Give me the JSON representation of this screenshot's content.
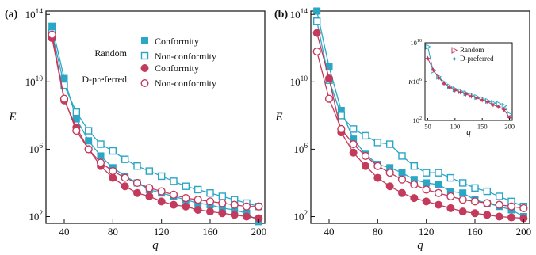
{
  "colors": {
    "random": "#2aa6c6",
    "dpref": "#c43a5c",
    "axis": "#111111"
  },
  "chart_data": [
    {
      "type": "line",
      "panel_label": "(a)",
      "xlabel": "q",
      "ylabel": "E",
      "xlim": [
        25,
        205
      ],
      "ylim_log10": [
        1.6,
        14.2
      ],
      "log_y": true,
      "xticks": [
        40,
        80,
        120,
        160,
        200
      ],
      "xtick_labels": [
        "40",
        "80",
        "120",
        "160",
        "200"
      ],
      "yticks": [
        2,
        6,
        10,
        14
      ],
      "ytick_labels": [
        {
          "base": "10",
          "exp": "2"
        },
        {
          "base": "10",
          "exp": "6"
        },
        {
          "base": "10",
          "exp": "10"
        },
        {
          "base": "10",
          "exp": "14"
        }
      ],
      "legend": {
        "group1": "Random",
        "group2": "D-preferred",
        "conformity": "Conformity",
        "nonconformity": "Non-conformity"
      },
      "x": [
        30,
        40,
        50,
        60,
        70,
        80,
        90,
        100,
        110,
        120,
        130,
        140,
        150,
        160,
        170,
        180,
        190,
        200
      ],
      "series": [
        {
          "group": "Random",
          "style": "Conformity",
          "log10_values": [
            13.3,
            10.2,
            7.8,
            6.5,
            5.6,
            4.9,
            4.4,
            4.0,
            3.6,
            3.4,
            3.2,
            3.0,
            2.8,
            2.7,
            2.5,
            2.4,
            2.2,
            1.7
          ]
        },
        {
          "group": "Random",
          "style": "Non-conformity",
          "log10_values": [
            12.9,
            9.8,
            8.2,
            7.1,
            6.3,
            5.9,
            5.4,
            5.0,
            4.7,
            4.4,
            4.1,
            3.8,
            3.6,
            3.4,
            3.2,
            3.0,
            2.8,
            2.6
          ]
        },
        {
          "group": "D-preferred",
          "style": "Conformity",
          "log10_values": [
            12.6,
            8.9,
            7.3,
            6.0,
            5.0,
            4.3,
            3.8,
            3.4,
            3.2,
            2.9,
            2.7,
            2.6,
            2.4,
            2.3,
            2.2,
            2.1,
            2.0,
            1.9
          ]
        },
        {
          "group": "D-preferred",
          "style": "Non-conformity",
          "log10_values": [
            12.8,
            9.0,
            7.1,
            6.0,
            5.2,
            4.7,
            4.3,
            4.0,
            3.7,
            3.5,
            3.3,
            3.1,
            3.0,
            2.9,
            2.8,
            2.7,
            2.6,
            2.6
          ]
        }
      ]
    },
    {
      "type": "line",
      "panel_label": "(b)",
      "xlabel": "q",
      "ylabel": "E",
      "xlim": [
        25,
        205
      ],
      "ylim_log10": [
        1.6,
        14.2
      ],
      "log_y": true,
      "xticks": [
        40,
        80,
        120,
        160,
        200
      ],
      "xtick_labels": [
        "40",
        "80",
        "120",
        "160",
        "200"
      ],
      "yticks": [
        2,
        6,
        10,
        14
      ],
      "ytick_labels": [
        {
          "base": "10",
          "exp": "2"
        },
        {
          "base": "10",
          "exp": "6"
        },
        {
          "base": "10",
          "exp": "10"
        },
        {
          "base": "10",
          "exp": "14"
        }
      ],
      "x": [
        30,
        40,
        50,
        60,
        70,
        80,
        90,
        100,
        110,
        120,
        130,
        140,
        150,
        160,
        170,
        180,
        190,
        200
      ],
      "series": [
        {
          "group": "Random",
          "style": "Conformity",
          "log10_values": [
            14.2,
            10.9,
            8.3,
            6.6,
            5.7,
            5.1,
            4.9,
            4.6,
            4.2,
            4.0,
            3.9,
            3.5,
            3.4,
            3.0,
            2.8,
            2.6,
            2.4,
            2.0
          ]
        },
        {
          "group": "Random",
          "style": "Non-conformity",
          "log10_values": [
            13.6,
            10.1,
            8.0,
            7.2,
            6.8,
            6.4,
            6.3,
            5.6,
            5.0,
            4.6,
            4.6,
            4.3,
            4.0,
            3.7,
            3.5,
            3.2,
            2.9,
            2.6
          ]
        },
        {
          "group": "D-preferred",
          "style": "Conformity",
          "log10_values": [
            12.9,
            10.2,
            7.0,
            5.8,
            5.0,
            4.3,
            3.8,
            3.4,
            3.1,
            2.9,
            2.7,
            2.5,
            2.3,
            2.2,
            2.1,
            2.0,
            1.95,
            1.9
          ]
        },
        {
          "group": "D-preferred",
          "style": "Non-conformity",
          "log10_values": [
            11.8,
            9.0,
            7.2,
            6.3,
            5.6,
            5.0,
            4.6,
            4.2,
            3.9,
            3.6,
            3.4,
            3.2,
            3.0,
            2.9,
            2.8,
            2.7,
            2.6,
            2.5
          ]
        }
      ]
    },
    {
      "type": "line",
      "role": "inset",
      "xlabel": "q",
      "ylabel": "κ",
      "xlim": [
        45,
        205
      ],
      "ylim_log10": [
        2,
        10
      ],
      "log_y": true,
      "xticks": [
        50,
        100,
        150,
        200
      ],
      "xtick_labels": [
        "50",
        "100",
        "150",
        "200"
      ],
      "yticks": [
        2,
        6,
        10
      ],
      "ytick_labels": [
        {
          "base": "10",
          "exp": "2"
        },
        {
          "base": "10",
          "exp": "6"
        },
        {
          "base": "10",
          "exp": "10"
        }
      ],
      "legend_labels": [
        "Random",
        "D-preferred"
      ],
      "x": [
        50,
        60,
        70,
        80,
        90,
        100,
        110,
        120,
        130,
        140,
        150,
        160,
        170,
        180,
        190,
        200
      ],
      "series": [
        {
          "name": "Random",
          "log10_values": [
            9.6,
            7.1,
            6.5,
            5.9,
            5.5,
            5.2,
            5.0,
            4.8,
            4.6,
            4.4,
            4.2,
            4.0,
            3.8,
            3.7,
            3.5,
            2.6
          ]
        },
        {
          "name": "D-preferred",
          "log10_values": [
            8.4,
            7.2,
            6.4,
            5.8,
            5.4,
            5.1,
            4.9,
            4.7,
            4.5,
            4.3,
            4.1,
            3.9,
            3.6,
            3.4,
            3.1,
            2.3
          ]
        }
      ]
    }
  ]
}
